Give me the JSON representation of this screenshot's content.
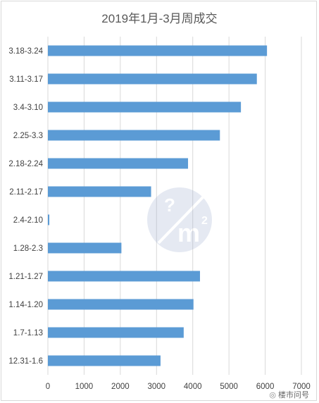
{
  "chart_data": {
    "type": "bar",
    "orientation": "horizontal",
    "title": "2019年1月-3月周成交",
    "categories": [
      "3.18-3.24",
      "3.11-3.17",
      "3.4-3.10",
      "2.25-3.3",
      "2.18-2.24",
      "2.11-2.17",
      "2.4-2.10",
      "1.28-2.3",
      "1.21-1.27",
      "1.14-1.20",
      "1.7-1.13",
      "12.31-1.6"
    ],
    "values": [
      6050,
      5770,
      5330,
      4750,
      3870,
      2850,
      40,
      2030,
      4200,
      4020,
      3750,
      3110
    ],
    "xlim": [
      0,
      7000
    ],
    "xticks": [
      0,
      1000,
      2000,
      3000,
      4000,
      5000,
      6000,
      7000
    ],
    "grid": true,
    "bar_color": "#5b9bd5"
  },
  "watermark": {
    "text": "楼市问号",
    "icon": "wechat-icon"
  },
  "logo": {
    "glyph": "?",
    "sup": "2",
    "letter": "m"
  }
}
